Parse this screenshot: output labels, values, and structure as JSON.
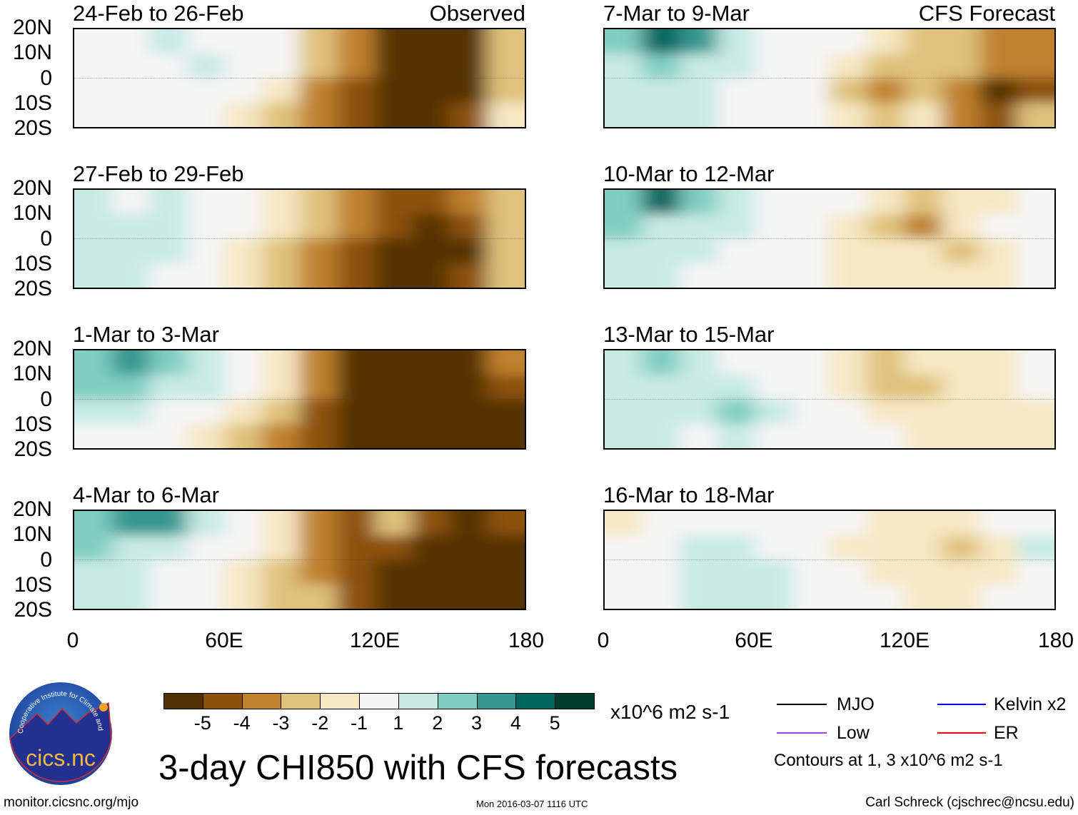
{
  "logo": {
    "name": "cics.nc",
    "ring_text": "Cooperative Institute for Climate and Satellites"
  },
  "header": {
    "observed_label": "Observed",
    "forecast_label": "CFS Forecast"
  },
  "lat_labels": [
    "20N",
    "10N",
    "0",
    "10S",
    "20S"
  ],
  "lon_labels": [
    "0",
    "60E",
    "120E",
    "180"
  ],
  "colorbar": {
    "labels": [
      "-5",
      "-4",
      "-3",
      "-2",
      "-1",
      "1",
      "2",
      "3",
      "4",
      "5"
    ],
    "colors": [
      "#543005",
      "#8c510a",
      "#bf812d",
      "#dfc27d",
      "#f6e8c3",
      "#f5f5f5",
      "#c7eae5",
      "#80cdc1",
      "#35978f",
      "#01665e",
      "#003c30"
    ],
    "units": "x10^6 m2 s-1"
  },
  "title": "3-day CHI850 with CFS forecasts",
  "legend": {
    "items": [
      {
        "label": "MJO",
        "color": "#000000"
      },
      {
        "label": "Kelvin x2",
        "color": "#0000ff"
      },
      {
        "label": "Low",
        "color": "#a040e0"
      },
      {
        "label": "ER",
        "color": "#ff0000"
      }
    ],
    "contours_note": "Contours at 1, 3 x10^6 m2 s-1"
  },
  "footer": {
    "url": "monitor.cicsnc.org/mjo",
    "timestamp": "Mon 2016-03-07 1116 UTC",
    "author": "Carl Schreck (cjschrec@ncsu.edu)"
  },
  "chart_data": {
    "type": "heatmap",
    "variable": "CHI850 anomaly (x10^6 m2 s-1)",
    "lon_bins": [
      0,
      15,
      30,
      45,
      60,
      75,
      90,
      105,
      120,
      135,
      150,
      165,
      180
    ],
    "lat_bands": [
      "20N-10N",
      "10N-0",
      "0-10S",
      "10S-20S"
    ],
    "xlim": [
      0,
      180
    ],
    "ylim": [
      -20,
      20
    ],
    "panels": [
      {
        "title": "24-Feb to 26-Feb",
        "source": "Observed",
        "grid": [
          [
            0,
            0,
            1,
            0,
            0,
            -1,
            -3,
            -4,
            -5.5,
            -5.5,
            -5.5,
            -3
          ],
          [
            0,
            0,
            0,
            1,
            0,
            -1,
            -3,
            -4,
            -5.5,
            -5.5,
            -5.5,
            -2.5
          ],
          [
            0,
            0,
            0,
            0,
            0,
            -1.5,
            -3.5,
            -4.5,
            -5.5,
            -5.5,
            -5.5,
            -2.5
          ],
          [
            0,
            0,
            0,
            0,
            -1.5,
            -2.5,
            -3.5,
            -4.5,
            -5.5,
            -5.5,
            -4.5,
            -1.5
          ]
        ]
      },
      {
        "title": "27-Feb to 29-Feb",
        "source": "Observed",
        "grid": [
          [
            1.5,
            0,
            1,
            0,
            0,
            -1.5,
            -3,
            -4,
            -4.5,
            -4.5,
            -3.5,
            -2.5
          ],
          [
            1.5,
            1.5,
            1,
            0,
            0,
            -1.5,
            -3,
            -4,
            -4.5,
            -5.5,
            -4.5,
            -3
          ],
          [
            1.5,
            1.5,
            1,
            0,
            -1.5,
            -2.5,
            -3.5,
            -4.5,
            -5.5,
            -5.5,
            -5.5,
            -3
          ],
          [
            1,
            1.5,
            0,
            0,
            -1.5,
            -2.5,
            -3.5,
            -4.5,
            -5.5,
            -5.5,
            -5,
            -3
          ]
        ]
      },
      {
        "title": "1-Mar to 3-Mar",
        "source": "Observed",
        "grid": [
          [
            2.5,
            3.5,
            2.5,
            1.5,
            0,
            -1.5,
            -3.5,
            -5.5,
            -5.5,
            -5.5,
            -5.5,
            -4
          ],
          [
            2.5,
            2.5,
            1.5,
            1,
            0,
            -1.5,
            -4,
            -5.5,
            -5.5,
            -5.5,
            -5.5,
            -4.5
          ],
          [
            1.5,
            1,
            0,
            0,
            -1.5,
            -2.5,
            -4.5,
            -5.5,
            -5.5,
            -5.5,
            -5.5,
            -5.5
          ],
          [
            0,
            0,
            0,
            -1.5,
            -2.5,
            -3.5,
            -4.5,
            -5.5,
            -5.5,
            -5.5,
            -5.5,
            -5.5
          ]
        ]
      },
      {
        "title": "4-Mar to 6-Mar",
        "source": "Observed",
        "grid": [
          [
            2.5,
            3.5,
            3.5,
            1.5,
            0,
            -1.5,
            -3.5,
            -4.5,
            -2.5,
            -4.5,
            -5.5,
            -4.5
          ],
          [
            2.5,
            1.5,
            1.5,
            0,
            0,
            -1.5,
            -3.5,
            -4.5,
            -4.5,
            -5.5,
            -5.5,
            -5.5
          ],
          [
            1.5,
            1,
            0,
            0,
            -1.5,
            -2.5,
            -3.5,
            -4.5,
            -5.5,
            -5.5,
            -5.5,
            -5.5
          ],
          [
            1.5,
            1,
            0,
            0,
            -1.5,
            -2.5,
            -3,
            -4.5,
            -5.5,
            -5.5,
            -5.5,
            -5.5
          ]
        ]
      },
      {
        "title": "7-Mar to 9-Mar",
        "source": "CFS Forecast",
        "grid": [
          [
            2.5,
            4.5,
            3.5,
            1.5,
            0,
            0,
            0,
            -1.5,
            -2.5,
            -2.5,
            -3.5,
            -3.5
          ],
          [
            1.5,
            2.5,
            1.5,
            1.5,
            0,
            0,
            -1.5,
            -2.5,
            -2.5,
            -2.5,
            -3.5,
            -3.5
          ],
          [
            1.5,
            1.5,
            1.5,
            0,
            0,
            0,
            -2.5,
            -3.5,
            -2.5,
            -3.5,
            -5.5,
            -4.5
          ],
          [
            1,
            1,
            1,
            0,
            0,
            0,
            -1.5,
            -2.5,
            -1.5,
            -3.5,
            -4.5,
            -3
          ]
        ]
      },
      {
        "title": "10-Mar to 12-Mar",
        "source": "CFS Forecast",
        "grid": [
          [
            2.5,
            4.5,
            2.5,
            1.5,
            0,
            0,
            0,
            -1.5,
            -2.5,
            -2,
            -1.5,
            0
          ],
          [
            2.5,
            1.5,
            1.5,
            1,
            0,
            0,
            -1.5,
            -2.5,
            -3.5,
            -1.5,
            0,
            0
          ],
          [
            1.5,
            1.5,
            1,
            0,
            0,
            0,
            -1.5,
            -2,
            -2,
            -2.5,
            -1.5,
            0
          ],
          [
            1,
            1,
            0,
            0,
            0,
            0,
            -1.5,
            -1.5,
            -1.5,
            -1.5,
            -1.5,
            0
          ]
        ]
      },
      {
        "title": "13-Mar to 15-Mar",
        "source": "CFS Forecast",
        "grid": [
          [
            1,
            2.5,
            1.5,
            0,
            0,
            0,
            -1.5,
            -2.5,
            -2,
            -1.5,
            -1.5,
            0
          ],
          [
            1,
            1,
            1,
            1.5,
            0,
            0,
            -1.5,
            -2.5,
            -2.5,
            -2,
            -1.5,
            0
          ],
          [
            1.5,
            1.5,
            1,
            2.5,
            1,
            0,
            0,
            -1.5,
            -1.5,
            -1.5,
            -1.5,
            -1.5
          ],
          [
            1,
            1,
            0,
            1,
            0,
            0,
            0,
            0,
            -1.5,
            -1.5,
            -1.5,
            -1.5
          ]
        ]
      },
      {
        "title": "16-Mar to 18-Mar",
        "source": "CFS Forecast",
        "grid": [
          [
            -1.5,
            0,
            0,
            0,
            0,
            0,
            0,
            -1.5,
            -1.5,
            -1.5,
            0,
            0
          ],
          [
            0,
            0,
            1,
            1,
            0,
            0,
            -1.5,
            -1.5,
            -1.5,
            -2.5,
            -1.5,
            1.5
          ],
          [
            0,
            0,
            1,
            1,
            1,
            0,
            0,
            -1.5,
            -1.5,
            -1.5,
            -1.5,
            0
          ],
          [
            0,
            0,
            1,
            1,
            1,
            0,
            0,
            0,
            -1.5,
            -1.5,
            0,
            0
          ]
        ]
      }
    ]
  }
}
